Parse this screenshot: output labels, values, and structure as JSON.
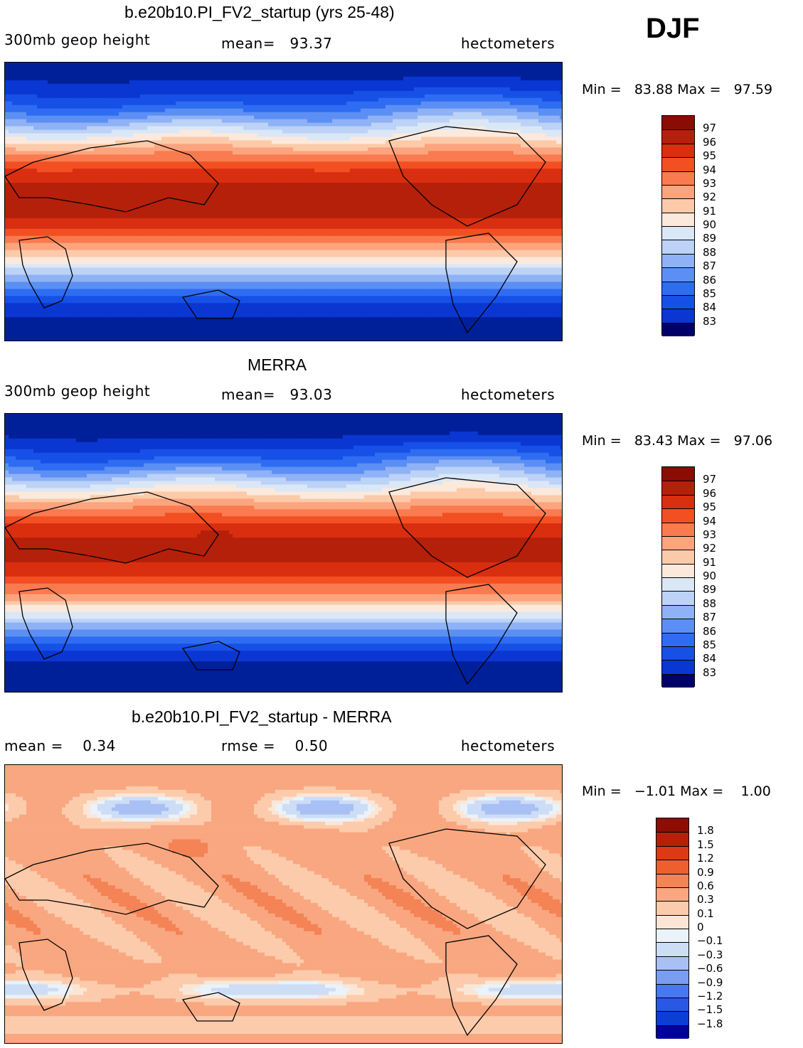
{
  "season": "DJF",
  "colors": {
    "abs_scale": [
      "#000066",
      "#00209a",
      "#0a36d2",
      "#1650e6",
      "#2e6cf2",
      "#5c8ff4",
      "#8fb2f6",
      "#bcd2f6",
      "#dae7f6",
      "#fbe9dc",
      "#fccaa9",
      "#fca47e",
      "#f97b4f",
      "#f24f22",
      "#d92e0f",
      "#b5200a",
      "#8a0c04"
    ],
    "diff_scale": [
      "#00009a",
      "#0526b4",
      "#0c3ed4",
      "#2858e4",
      "#4a77ee",
      "#7a9df2",
      "#a8c0f4",
      "#cdddf6",
      "#eaf2fa",
      "#fbe6d6",
      "#fccbab",
      "#f9a780",
      "#f48356",
      "#ee5f30",
      "#dc3a16",
      "#b5200a",
      "#8c0d04"
    ]
  },
  "panels": [
    {
      "title": "b.e20b10.PI_FV2_startup (yrs 25-48)",
      "left": "300mb geop height",
      "center": "mean=   93.37",
      "right": "hectometers",
      "min_label": "Min =",
      "min_value": "83.88",
      "max_label": "Max =",
      "max_value": "97.59",
      "field_mean": 93.37,
      "field_min": 83.88,
      "field_max": 97.59,
      "colorbar_labels": [
        "97",
        "96",
        "95",
        "94",
        "93",
        "92",
        "91",
        "90",
        "89",
        "88",
        "87",
        "86",
        "85",
        "84",
        "83"
      ]
    },
    {
      "title": "MERRA",
      "left": "300mb geop height",
      "center": "mean=   93.03",
      "right": "hectometers",
      "min_label": "Min =",
      "min_value": "83.43",
      "max_label": "Max =",
      "max_value": "97.06",
      "field_mean": 93.03,
      "field_min": 83.43,
      "field_max": 97.06,
      "colorbar_labels": [
        "97",
        "96",
        "95",
        "94",
        "93",
        "92",
        "91",
        "90",
        "89",
        "88",
        "87",
        "86",
        "85",
        "84",
        "83"
      ]
    },
    {
      "title": "b.e20b10.PI_FV2_startup - MERRA",
      "left": "mean =    0.34",
      "center": "rmse =    0.50",
      "right": "hectometers",
      "min_label": "Min =",
      "min_value": "−1.01",
      "max_label": "Max =",
      "max_value": "1.00",
      "field_mean": 0.34,
      "field_min": -1.01,
      "field_max": 1.0,
      "colorbar_labels": [
        "1.8",
        "1.5",
        "1.2",
        "0.9",
        "0.6",
        "0.3",
        "0.1",
        "0",
        "−0.1",
        "−0.3",
        "−0.6",
        "−0.9",
        "−1.2",
        "−1.5",
        "−1.8"
      ]
    }
  ]
}
